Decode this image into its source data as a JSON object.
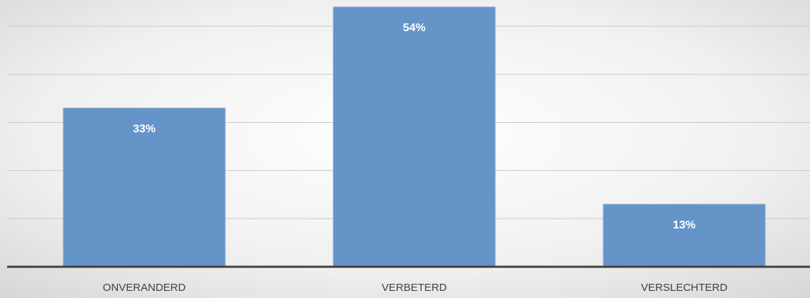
{
  "chart_data": {
    "type": "bar",
    "categories": [
      "ONVERANDERD",
      "VERBETERD",
      "VERSLECHTERD"
    ],
    "values": [
      33,
      54,
      13
    ],
    "value_labels": [
      "33%",
      "54%",
      "13%"
    ],
    "color": "#6494c8",
    "ylim": [
      0,
      55
    ],
    "yticks": [
      0,
      10,
      20,
      30,
      40,
      50
    ],
    "grid": true
  }
}
